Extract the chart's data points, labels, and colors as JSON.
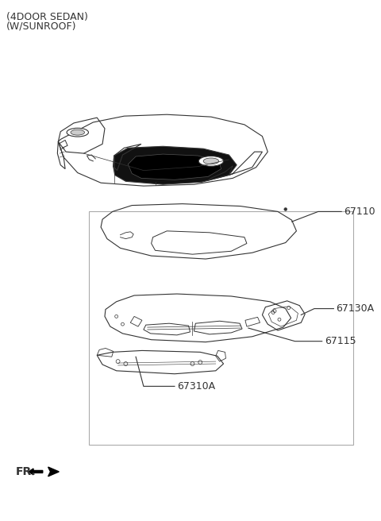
{
  "title_line1": "(4DOOR SEDAN)",
  "title_line2": "(W/SUNROOF)",
  "fr_label": "FR.",
  "bg_color": "#ffffff",
  "line_color": "#333333",
  "text_color": "#333333",
  "label_fontsize": 9,
  "title_fontsize": 9
}
